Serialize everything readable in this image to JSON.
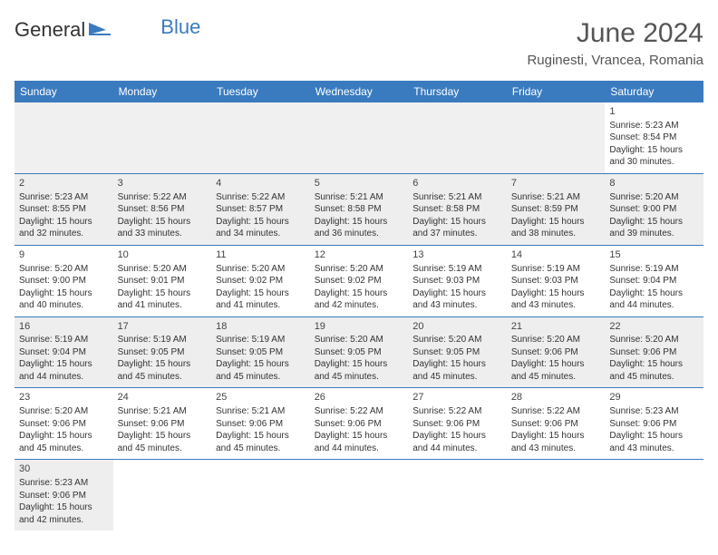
{
  "logo": {
    "text1": "General",
    "text2": "Blue"
  },
  "header": {
    "title": "June 2024",
    "subtitle": "Ruginesti, Vrancea, Romania"
  },
  "colors": {
    "header_bg": "#3a7bbf",
    "header_text": "#ffffff",
    "cell_border": "#3a7bbf",
    "alt_row_bg": "#eeeeee",
    "text": "#333333"
  },
  "dayNames": [
    "Sunday",
    "Monday",
    "Tuesday",
    "Wednesday",
    "Thursday",
    "Friday",
    "Saturday"
  ],
  "weeks": [
    [
      null,
      null,
      null,
      null,
      null,
      null,
      {
        "n": "1",
        "sr": "5:23 AM",
        "ss": "8:54 PM",
        "dl": "15 hours and 30 minutes."
      }
    ],
    [
      {
        "n": "2",
        "sr": "5:23 AM",
        "ss": "8:55 PM",
        "dl": "15 hours and 32 minutes."
      },
      {
        "n": "3",
        "sr": "5:22 AM",
        "ss": "8:56 PM",
        "dl": "15 hours and 33 minutes."
      },
      {
        "n": "4",
        "sr": "5:22 AM",
        "ss": "8:57 PM",
        "dl": "15 hours and 34 minutes."
      },
      {
        "n": "5",
        "sr": "5:21 AM",
        "ss": "8:58 PM",
        "dl": "15 hours and 36 minutes."
      },
      {
        "n": "6",
        "sr": "5:21 AM",
        "ss": "8:58 PM",
        "dl": "15 hours and 37 minutes."
      },
      {
        "n": "7",
        "sr": "5:21 AM",
        "ss": "8:59 PM",
        "dl": "15 hours and 38 minutes."
      },
      {
        "n": "8",
        "sr": "5:20 AM",
        "ss": "9:00 PM",
        "dl": "15 hours and 39 minutes."
      }
    ],
    [
      {
        "n": "9",
        "sr": "5:20 AM",
        "ss": "9:00 PM",
        "dl": "15 hours and 40 minutes."
      },
      {
        "n": "10",
        "sr": "5:20 AM",
        "ss": "9:01 PM",
        "dl": "15 hours and 41 minutes."
      },
      {
        "n": "11",
        "sr": "5:20 AM",
        "ss": "9:02 PM",
        "dl": "15 hours and 41 minutes."
      },
      {
        "n": "12",
        "sr": "5:20 AM",
        "ss": "9:02 PM",
        "dl": "15 hours and 42 minutes."
      },
      {
        "n": "13",
        "sr": "5:19 AM",
        "ss": "9:03 PM",
        "dl": "15 hours and 43 minutes."
      },
      {
        "n": "14",
        "sr": "5:19 AM",
        "ss": "9:03 PM",
        "dl": "15 hours and 43 minutes."
      },
      {
        "n": "15",
        "sr": "5:19 AM",
        "ss": "9:04 PM",
        "dl": "15 hours and 44 minutes."
      }
    ],
    [
      {
        "n": "16",
        "sr": "5:19 AM",
        "ss": "9:04 PM",
        "dl": "15 hours and 44 minutes."
      },
      {
        "n": "17",
        "sr": "5:19 AM",
        "ss": "9:05 PM",
        "dl": "15 hours and 45 minutes."
      },
      {
        "n": "18",
        "sr": "5:19 AM",
        "ss": "9:05 PM",
        "dl": "15 hours and 45 minutes."
      },
      {
        "n": "19",
        "sr": "5:20 AM",
        "ss": "9:05 PM",
        "dl": "15 hours and 45 minutes."
      },
      {
        "n": "20",
        "sr": "5:20 AM",
        "ss": "9:05 PM",
        "dl": "15 hours and 45 minutes."
      },
      {
        "n": "21",
        "sr": "5:20 AM",
        "ss": "9:06 PM",
        "dl": "15 hours and 45 minutes."
      },
      {
        "n": "22",
        "sr": "5:20 AM",
        "ss": "9:06 PM",
        "dl": "15 hours and 45 minutes."
      }
    ],
    [
      {
        "n": "23",
        "sr": "5:20 AM",
        "ss": "9:06 PM",
        "dl": "15 hours and 45 minutes."
      },
      {
        "n": "24",
        "sr": "5:21 AM",
        "ss": "9:06 PM",
        "dl": "15 hours and 45 minutes."
      },
      {
        "n": "25",
        "sr": "5:21 AM",
        "ss": "9:06 PM",
        "dl": "15 hours and 45 minutes."
      },
      {
        "n": "26",
        "sr": "5:22 AM",
        "ss": "9:06 PM",
        "dl": "15 hours and 44 minutes."
      },
      {
        "n": "27",
        "sr": "5:22 AM",
        "ss": "9:06 PM",
        "dl": "15 hours and 44 minutes."
      },
      {
        "n": "28",
        "sr": "5:22 AM",
        "ss": "9:06 PM",
        "dl": "15 hours and 43 minutes."
      },
      {
        "n": "29",
        "sr": "5:23 AM",
        "ss": "9:06 PM",
        "dl": "15 hours and 43 minutes."
      }
    ],
    [
      {
        "n": "30",
        "sr": "5:23 AM",
        "ss": "9:06 PM",
        "dl": "15 hours and 42 minutes."
      },
      null,
      null,
      null,
      null,
      null,
      null
    ]
  ],
  "labels": {
    "sunrise": "Sunrise:",
    "sunset": "Sunset:",
    "daylight": "Daylight:"
  }
}
